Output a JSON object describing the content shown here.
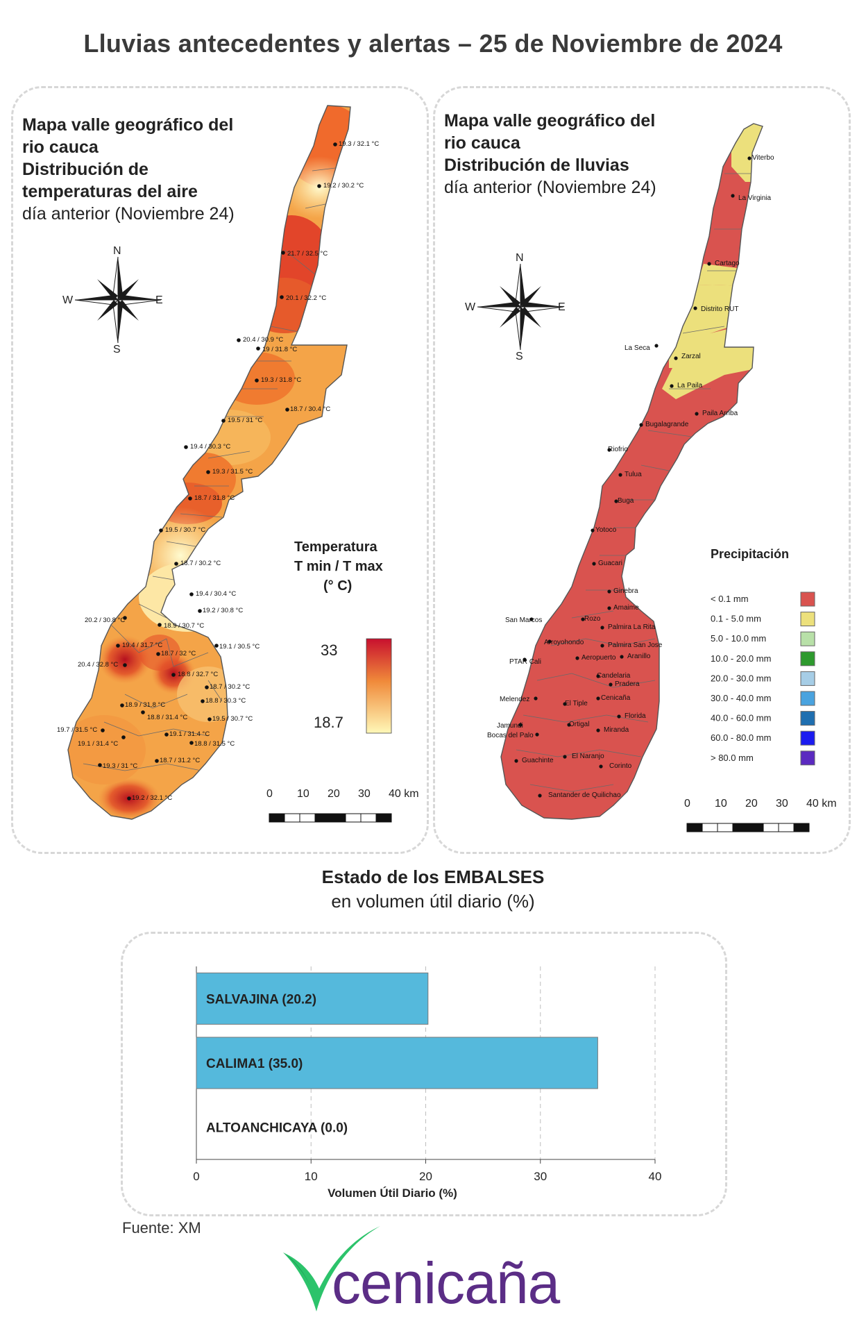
{
  "title": "Lluvias antecedentes y alertas – 25 de Noviembre de 2024",
  "temp_map": {
    "title_lines": [
      "Mapa valle geográfico del",
      "rio cauca",
      "Distribución de",
      "temperaturas del aire"
    ],
    "subtitle": "día anterior (Noviembre 24)",
    "compass": {
      "n": "N",
      "s": "S",
      "e": "E",
      "w": "W"
    },
    "legend": {
      "title1": "Temperatura",
      "title2": "T min / T max",
      "title3": "(° C)",
      "max": "33",
      "min": "18.7",
      "color_top": "#c8102e",
      "color_mid": "#f08a3a",
      "color_bottom": "#fff8b8"
    },
    "scale": {
      "labels": [
        "0",
        "10",
        "20",
        "30",
        "40 km"
      ]
    },
    "stations": [
      "19.3 / 32.1 °C",
      "19.2 / 30.2 °C",
      "21.7 / 32.5 °C",
      "20.1 / 32.2 °C",
      "20.4 / 30.9 °C",
      "19 / 31.8 °C",
      "19.3 / 31.8 °C",
      "18.7 / 30.4 °C",
      "19.5 / 31 °C",
      "19.4 / 30.3 °C",
      "19.3 / 31.5 °C",
      "18.7 / 31.8 °C",
      "19.5 / 30.7 °C",
      "18.7 / 30.2 °C",
      "19.4 / 30.4 °C",
      "20.2 / 30.8 °C",
      "19.2 / 30.8 °C",
      "18.9 / 30.7 °C",
      "19.4 / 31.7 °C",
      "19.1 / 30.5 °C",
      "20.4 / 32.8 °C",
      "18.7 / 32 °C",
      "18.8 / 32.7 °C",
      "18.7 / 30.2 °C",
      "18.9 / 31.8 °C",
      "18.8 / 30.3 °C",
      "18.8 / 31.4 °C",
      "19.5 / 30.7 °C",
      "19.7 / 31.5 °C",
      "19.1 / 31.4 °C",
      "19.1 / 31.4 °C",
      "18.8 / 31.5 °C",
      "18.7 / 31.2 °C",
      "19.3 / 31 °C",
      "19.2 / 32.1 °C"
    ]
  },
  "rain_map": {
    "title_lines": [
      "Mapa valle geográfico del",
      "rio cauca",
      "Distribución de lluvias"
    ],
    "subtitle": "día anterior (Noviembre 24)",
    "compass": {
      "n": "N",
      "s": "S",
      "e": "E",
      "w": "W"
    },
    "stations": [
      "Viterbo",
      "La Virginia",
      "Cartago",
      "Distrito RUT",
      "La Seca",
      "Zarzal",
      "La Paila",
      "Paila Arriba",
      "Bugalagrande",
      "Riofrio",
      "Tulua",
      "Buga",
      "Yotoco",
      "Guacari",
      "Ginebra",
      "Amaime",
      "San Marcos",
      "Rozo",
      "Palmira La Rita",
      "Arroyohondo",
      "Palmira San Jose",
      "Aeropuerto",
      "Aranillo",
      "PTAR Cali",
      "Candelaria",
      "Pradera",
      "Cenicaña",
      "Melendez",
      "El Tiple",
      "Florida",
      "Jamundi",
      "Bocas del Palo",
      "Ortigal",
      "Miranda",
      "El Naranjo",
      "Guachinte",
      "Corinto",
      "Santander de Quilichao"
    ],
    "legend": {
      "title": "Precipitación",
      "items": [
        {
          "label": "< 0.1 mm",
          "color": "#d9534f"
        },
        {
          "label": "0.1 - 5.0 mm",
          "color": "#ece07c"
        },
        {
          "label": "5.0 - 10.0 mm",
          "color": "#b8e0a8"
        },
        {
          "label": "10.0 - 20.0 mm",
          "color": "#2e9a2e"
        },
        {
          "label": "20.0 - 30.0 mm",
          "color": "#a6cde6"
        },
        {
          "label": "30.0 - 40.0 mm",
          "color": "#4aa3df"
        },
        {
          "label": "40.0 - 60.0 mm",
          "color": "#1f6fb0"
        },
        {
          "label": "60.0 - 80.0 mm",
          "color": "#1b1bf0"
        },
        {
          "label": "> 80.0 mm",
          "color": "#5b2ac0"
        }
      ]
    },
    "scale": {
      "labels": [
        "0",
        "10",
        "20",
        "30",
        "40 km"
      ]
    }
  },
  "reservoirs": {
    "title": "Estado de los EMBALSES",
    "subtitle": "en volumen útil diario (%)",
    "xlabel": "Volumen Útil Diario (%)",
    "source": "Fuente: XM"
  },
  "chart_data": {
    "type": "bar",
    "orientation": "horizontal",
    "categories": [
      "SALVAJINA (20.2)",
      "CALIMA1 (35.0)",
      "ALTOANCHICAYA (0.0)"
    ],
    "values": [
      20.2,
      35.0,
      0.0
    ],
    "xlabel": "Volumen Útil Diario (%)",
    "xlim": [
      0,
      40
    ],
    "xticks": [
      "0",
      "10",
      "20",
      "30",
      "40"
    ],
    "bar_color": "#55b9dc",
    "grid": "vertical dashed"
  },
  "brand": {
    "name": "cenicaña",
    "color": "#5b2d86",
    "leaf_color": "#2cc36b"
  }
}
